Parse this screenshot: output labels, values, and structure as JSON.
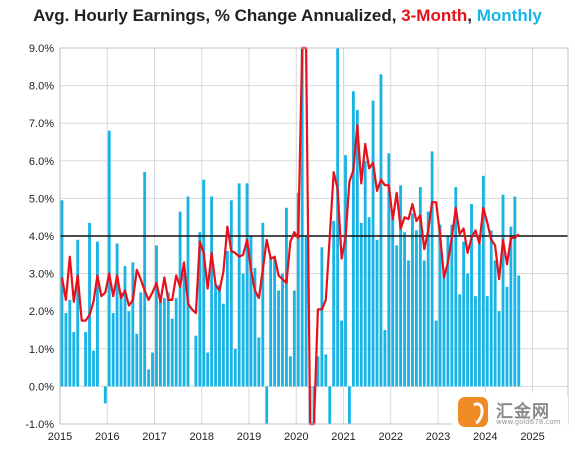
{
  "title": {
    "main": "Avg. Hourly Earnings, % Change Annualized, ",
    "series1": "3-Month",
    "sep": ", ",
    "series2": "Monthly"
  },
  "colors": {
    "bar": "#18b4e6",
    "line": "#e8101b",
    "reference": "#111111",
    "grid": "#d9d9d9"
  },
  "chart_data": {
    "type": "bar",
    "title": "Avg. Hourly Earnings, % Change Annualized, 3-Month, Monthly",
    "xlabel": "",
    "ylabel": "",
    "ylim": [
      -1.0,
      9.0
    ],
    "xlim": [
      2015.0,
      2025.75
    ],
    "grid": true,
    "x_tick_labels": [
      "2015",
      "2016",
      "2017",
      "2018",
      "2019",
      "2020",
      "2021",
      "2022",
      "2023",
      "2024",
      "2025"
    ],
    "y_tick_labels": [
      "-1.0%",
      "0.0%",
      "1.0%",
      "2.0%",
      "3.0%",
      "4.0%",
      "5.0%",
      "6.0%",
      "7.0%",
      "8.0%",
      "9.0%"
    ],
    "reference_line": 4.0,
    "series": [
      {
        "name": "Monthly",
        "type": "bar",
        "start": "2015-01",
        "values": [
          4.95,
          1.95,
          2.3,
          1.45,
          3.9,
          0.0,
          1.45,
          4.35,
          0.95,
          3.85,
          0.0,
          -0.45,
          6.8,
          1.95,
          3.8,
          2.5,
          3.2,
          2.0,
          3.3,
          1.4,
          2.5,
          5.7,
          0.45,
          0.9,
          3.75,
          2.35,
          2.35,
          2.5,
          1.8,
          2.35,
          4.65,
          3.0,
          5.05,
          0.0,
          1.35,
          4.1,
          5.5,
          0.9,
          5.05,
          2.7,
          2.7,
          2.2,
          3.6,
          4.95,
          1.0,
          5.4,
          3.0,
          5.4,
          4.0,
          3.15,
          1.3,
          4.35,
          -1.0,
          3.45,
          3.45,
          2.55,
          3.0,
          4.75,
          0.8,
          2.55,
          5.15,
          9.0,
          4.0,
          -1.0,
          -1.0,
          0.8,
          3.7,
          0.85,
          -1.0,
          4.4,
          9.0,
          1.75,
          6.15,
          -1.0,
          7.85,
          7.35,
          4.35,
          6.0,
          4.5,
          7.6,
          3.9,
          8.3,
          1.5,
          6.2,
          4.5,
          3.75,
          5.35,
          4.1,
          3.35,
          4.6,
          4.15,
          5.3,
          3.35,
          4.65,
          6.25,
          1.75,
          4.3,
          3.0,
          4.0,
          4.3,
          5.3,
          2.45,
          3.85,
          3.0,
          4.85,
          2.4,
          3.8,
          5.6,
          2.4,
          4.15,
          3.35,
          2.0,
          5.1,
          2.65,
          4.25,
          5.05,
          2.95
        ]
      },
      {
        "name": "3-Month",
        "type": "line",
        "start": "2015-01",
        "values": [
          2.9,
          2.3,
          3.45,
          2.25,
          2.95,
          1.75,
          1.75,
          1.9,
          2.25,
          2.95,
          2.4,
          2.5,
          3.0,
          2.4,
          2.95,
          2.35,
          2.55,
          2.15,
          2.3,
          3.1,
          2.85,
          2.55,
          2.3,
          2.5,
          2.75,
          2.25,
          2.9,
          2.3,
          2.3,
          2.95,
          2.65,
          3.3,
          2.2,
          2.05,
          1.95,
          3.85,
          3.55,
          2.6,
          3.55,
          2.7,
          2.55,
          3.05,
          4.25,
          3.6,
          3.55,
          3.45,
          3.5,
          3.9,
          3.1,
          2.55,
          2.35,
          3.1,
          3.9,
          3.4,
          3.45,
          2.95,
          2.85,
          2.75,
          3.85,
          4.1,
          3.95,
          9.0,
          9.0,
          -1.0,
          -1.0,
          2.05,
          2.05,
          2.3,
          4.0,
          5.7,
          5.25,
          3.4,
          3.95,
          5.45,
          5.75,
          6.95,
          5.4,
          6.45,
          5.8,
          5.95,
          5.2,
          5.5,
          5.35,
          5.35,
          4.45,
          5.15,
          4.2,
          4.5,
          4.45,
          4.85,
          4.4,
          4.55,
          3.65,
          4.15,
          4.9,
          4.9,
          4.05,
          2.9,
          3.3,
          3.95,
          4.75,
          4.05,
          4.2,
          3.55,
          3.95,
          4.15,
          3.8,
          4.75,
          4.35,
          3.9,
          3.75,
          2.85,
          3.9,
          3.25,
          3.95,
          3.95,
          4.05
        ]
      }
    ]
  },
  "watermark": {
    "name": "汇金网",
    "url": "www.gold678.com"
  }
}
